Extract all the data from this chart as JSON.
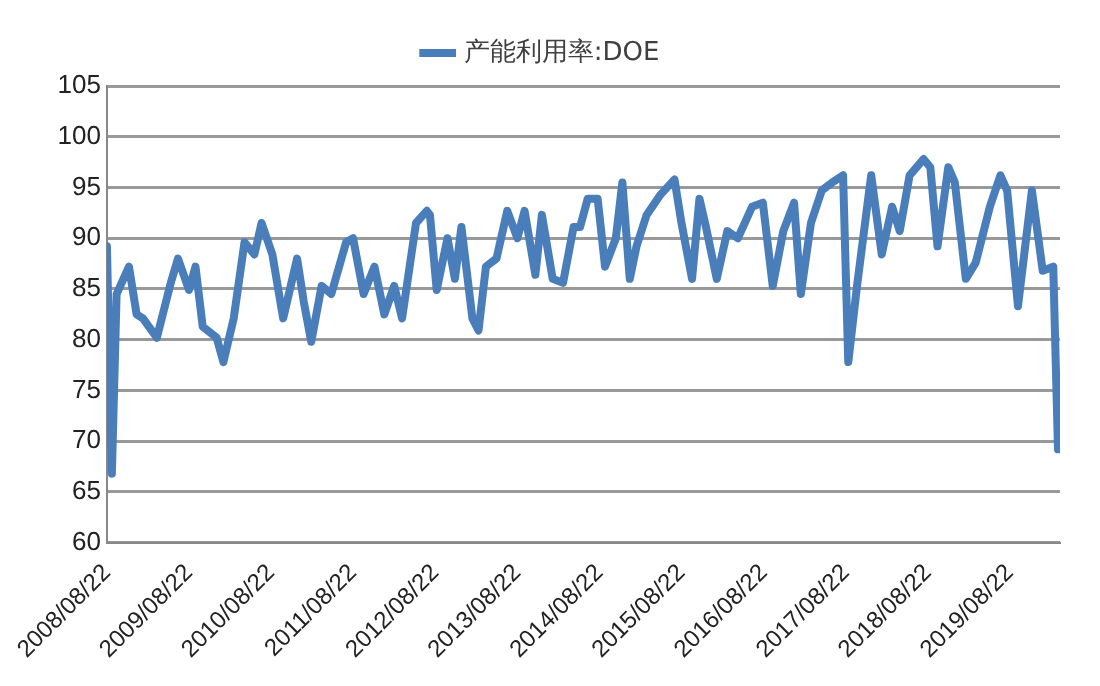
{
  "chart_data": {
    "type": "line",
    "legend": "top",
    "grid": "y",
    "marker": "none",
    "line_style": "solid",
    "xlim": [
      "2008-08-22",
      "2020-04-01"
    ],
    "xticks": [
      {
        "value": "2008-08-22",
        "label": "2008/08/22"
      },
      {
        "value": "2009-08-22",
        "label": "2009/08/22"
      },
      {
        "value": "2010-08-22",
        "label": "2010/08/22"
      },
      {
        "value": "2011-08-22",
        "label": "2011/08/22"
      },
      {
        "value": "2012-08-22",
        "label": "2012/08/22"
      },
      {
        "value": "2013-08-22",
        "label": "2013/08/22"
      },
      {
        "value": "2014-08-22",
        "label": "2014/08/22"
      },
      {
        "value": "2015-08-22",
        "label": "2015/08/22"
      },
      {
        "value": "2016-08-22",
        "label": "2016/08/22"
      },
      {
        "value": "2017-08-22",
        "label": "2017/08/22"
      },
      {
        "value": "2018-08-22",
        "label": "2018/08/22"
      },
      {
        "value": "2019-08-22",
        "label": "2019/08/22"
      }
    ],
    "ylim": [
      60,
      105
    ],
    "yticks": [
      60,
      65,
      70,
      75,
      80,
      85,
      90,
      95,
      100,
      105
    ],
    "x": [
      "2008-08-22",
      "2008-09-13",
      "2008-10-04",
      "2008-11-28",
      "2009-01-01",
      "2009-01-29",
      "2009-04-01",
      "2009-06-02",
      "2009-07-04",
      "2009-08-22",
      "2009-09-20",
      "2009-10-22",
      "2009-12-23",
      "2010-01-22",
      "2010-03-09",
      "2010-04-26",
      "2010-06-09",
      "2010-07-11",
      "2010-08-28",
      "2010-10-15",
      "2010-12-16",
      "2011-01-15",
      "2011-02-17",
      "2011-04-04",
      "2011-05-17",
      "2011-07-22",
      "2011-08-22",
      "2011-10-08",
      "2011-11-25",
      "2012-01-08",
      "2012-02-21",
      "2012-03-27",
      "2012-05-28",
      "2012-07-15",
      "2012-07-29",
      "2012-08-28",
      "2012-10-15",
      "2012-11-17",
      "2012-12-16",
      "2013-02-03",
      "2013-03-02",
      "2013-04-04",
      "2013-05-21",
      "2013-07-08",
      "2013-08-22",
      "2013-09-23",
      "2013-11-10",
      "2013-12-09",
      "2014-01-26",
      "2014-03-13",
      "2014-04-29",
      "2014-05-28",
      "2014-07-01",
      "2014-08-14",
      "2014-09-16",
      "2014-11-03",
      "2014-12-02",
      "2015-01-04",
      "2015-02-03",
      "2015-03-20",
      "2015-05-21",
      "2015-07-22",
      "2015-08-22",
      "2015-10-08",
      "2015-11-10",
      "2015-12-09",
      "2016-01-26",
      "2016-03-13",
      "2016-04-29",
      "2016-07-01",
      "2016-08-18",
      "2016-10-01",
      "2016-11-17",
      "2017-01-04",
      "2017-02-03",
      "2017-03-20",
      "2017-05-07",
      "2017-06-23",
      "2017-08-10",
      "2017-09-02",
      "2017-10-11",
      "2017-12-13",
      "2018-01-29",
      "2018-03-16",
      "2018-04-19",
      "2018-06-02",
      "2018-08-03",
      "2018-09-02",
      "2018-10-04",
      "2018-11-21",
      "2018-12-20",
      "2019-02-07",
      "2019-03-23",
      "2019-05-25",
      "2019-07-11",
      "2019-08-10",
      "2019-09-27",
      "2019-11-28",
      "2020-01-15",
      "2020-03-02",
      "2020-03-23"
    ],
    "series": [
      {
        "name": "产能利用率:DOE",
        "color": "#4a7ebb",
        "values": [
          89.2,
          66.8,
          84.5,
          87.2,
          82.5,
          82.1,
          80.2,
          85.6,
          88,
          84.9,
          87.2,
          81.3,
          80.2,
          77.8,
          82.1,
          89.6,
          88.4,
          91.5,
          88.4,
          82.1,
          88,
          83.7,
          79.8,
          85.3,
          84.5,
          89.6,
          90,
          84.5,
          87.2,
          82.5,
          85.3,
          82.1,
          91.5,
          92.7,
          92.3,
          84.9,
          90,
          86,
          91.1,
          82.1,
          80.9,
          87.2,
          88,
          92.7,
          90,
          92.7,
          86.4,
          92.3,
          86,
          85.6,
          91.1,
          91.1,
          93.9,
          93.9,
          87.2,
          90,
          95.5,
          86,
          89.2,
          92.3,
          94.3,
          95.8,
          91.5,
          86,
          93.9,
          91.1,
          86,
          90.7,
          90,
          93.1,
          93.5,
          85.3,
          90.7,
          93.5,
          84.5,
          91.5,
          94.7,
          95.5,
          96.2,
          77.8,
          85.3,
          96.2,
          88.4,
          93.1,
          90.7,
          96.2,
          97.8,
          97,
          89.2,
          97,
          95.5,
          86,
          87.6,
          93.1,
          96.2,
          94.7,
          83.3,
          94.7,
          86.8,
          87.2,
          69.2
        ]
      }
    ]
  }
}
